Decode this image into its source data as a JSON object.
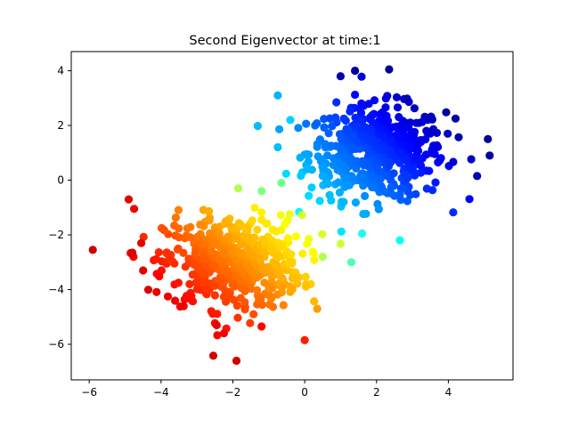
{
  "chart_data": {
    "type": "scatter",
    "title": "Second Eigenvector at time:1",
    "xlabel": "",
    "ylabel": "",
    "xlim": [
      -6.5,
      5.8
    ],
    "ylim": [
      -7.3,
      4.7
    ],
    "xticks": [
      -6,
      -4,
      -2,
      0,
      2,
      4
    ],
    "yticks": [
      -6,
      -4,
      -2,
      0,
      2,
      4
    ],
    "grid": false,
    "colormap": "jet",
    "clusters": [
      {
        "center_x": 2.0,
        "center_y": 1.0,
        "spread_x": 0.95,
        "spread_y": 0.85,
        "n_points": 520,
        "color_range": [
          0.05,
          0.32
        ]
      },
      {
        "center_x": -2.0,
        "center_y": -3.0,
        "spread_x": 0.95,
        "spread_y": 0.85,
        "n_points": 520,
        "color_range": [
          0.6,
          0.9
        ]
      }
    ],
    "points": [
      {
        "x": -5.9,
        "y": -2.55,
        "c": 0.92
      },
      {
        "x": -4.9,
        "y": -0.7,
        "c": 0.9
      },
      {
        "x": -4.75,
        "y": -1.05,
        "c": 0.89
      },
      {
        "x": -4.55,
        "y": -2.3,
        "c": 0.9
      },
      {
        "x": -4.5,
        "y": -3.3,
        "c": 0.9
      },
      {
        "x": -4.8,
        "y": -2.65,
        "c": 0.91
      },
      {
        "x": -1.9,
        "y": -6.6,
        "c": 0.92
      },
      {
        "x": -2.25,
        "y": -5.6,
        "c": 0.88
      },
      {
        "x": -2.45,
        "y": -5.3,
        "c": 0.89
      },
      {
        "x": 0.0,
        "y": -5.85,
        "c": 0.85
      },
      {
        "x": -1.2,
        "y": -5.35,
        "c": 0.87
      },
      {
        "x": -0.75,
        "y": 3.1,
        "c": 0.3
      },
      {
        "x": -0.4,
        "y": 2.2,
        "c": 0.33
      },
      {
        "x": 1.4,
        "y": 4.0,
        "c": 0.03
      },
      {
        "x": 1.0,
        "y": 3.8,
        "c": 0.05
      },
      {
        "x": 2.35,
        "y": 4.05,
        "c": 0.02
      },
      {
        "x": 5.1,
        "y": 1.5,
        "c": 0.02
      },
      {
        "x": 5.15,
        "y": 0.9,
        "c": 0.03
      },
      {
        "x": 4.8,
        "y": 0.15,
        "c": 0.05
      },
      {
        "x": 4.2,
        "y": 2.25,
        "c": 0.04
      },
      {
        "x": 1.3,
        "y": -3.0,
        "c": 0.45
      },
      {
        "x": 1.6,
        "y": -1.95,
        "c": 0.4
      },
      {
        "x": 2.65,
        "y": -2.2,
        "c": 0.38
      },
      {
        "x": 0.35,
        "y": -4.7,
        "c": 0.72
      },
      {
        "x": 0.5,
        "y": -2.8,
        "c": 0.55
      },
      {
        "x": -0.65,
        "y": -0.1,
        "c": 0.48
      },
      {
        "x": -1.85,
        "y": -0.3,
        "c": 0.55
      },
      {
        "x": -1.2,
        "y": -0.4,
        "c": 0.5
      }
    ]
  }
}
